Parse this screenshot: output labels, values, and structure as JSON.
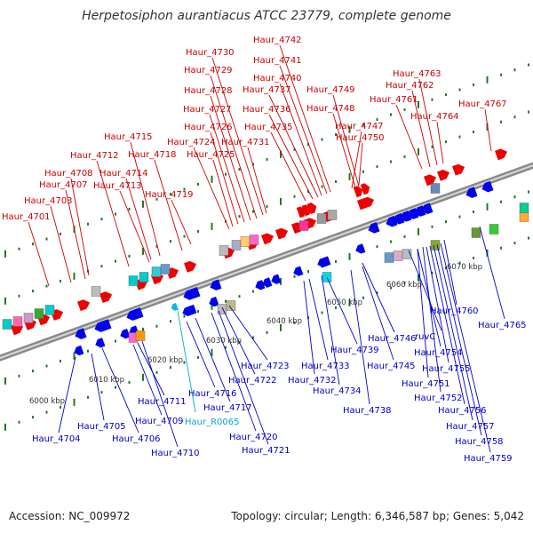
{
  "title": "Herpetosiphon aurantiacus ATCC 23779, complete genome",
  "footer": {
    "accession": "Accession: NC_009972",
    "topology": "Topology: circular; Length: 6,346,587 bp; Genes: 5,042"
  },
  "colors": {
    "forward_gene": "#ee0000",
    "reverse_gene": "#0000ee",
    "rna_gene": "#00bbdd",
    "forward_label": "#cc0000",
    "reverse_label": "#0000cc",
    "rna_label": "#00aacc",
    "tick": "#227722",
    "backbone": "#8a8a8a"
  },
  "kbp_ticks": [
    "6000 kbp",
    "6010 kbp",
    "6020 kbp",
    "6030 kbp",
    "6040 kbp",
    "6050 kbp",
    "6060 kbp",
    "6070 kbp"
  ],
  "forward_genes": [
    "Haur_4701",
    "Haur_4703",
    "Haur_4707",
    "Haur_4708",
    "Haur_4712",
    "Haur_4713",
    "Haur_4714",
    "Haur_4715",
    "Haur_4718",
    "Haur_4719",
    "Haur_4724",
    "Haur_4725",
    "Haur_4726",
    "Haur_4727",
    "Haur_4728",
    "Haur_4729",
    "Haur_4730",
    "Haur_4731",
    "Haur_4735",
    "Haur_4736",
    "Haur_4737",
    "Haur_4740",
    "Haur_4741",
    "Haur_4742",
    "Haur_4747",
    "Haur_4748",
    "Haur_4749",
    "Haur_4750",
    "Haur_4761",
    "Haur_4762",
    "Haur_4763",
    "Haur_4764",
    "Haur_4767"
  ],
  "reverse_genes": [
    "Haur_4704",
    "Haur_4705",
    "Haur_4706",
    "Haur_4709",
    "Haur_4710",
    "Haur_4711",
    "Haur_4716",
    "Haur_4717",
    "Haur_4720",
    "Haur_4721",
    "Haur_4722",
    "Haur_4723",
    "Haur_4732",
    "Haur_4733",
    "Haur_4734",
    "Haur_4738",
    "Haur_4739",
    "Haur_4745",
    "Haur_4746",
    "ruvC",
    "Haur_4751",
    "Haur_4752",
    "Haur_4754",
    "Haur_4755",
    "Haur_4756",
    "Haur_4757",
    "Haur_4758",
    "Haur_4759",
    "Haur_4760",
    "Haur_4765"
  ],
  "rna_genes": [
    "Haur_R0065"
  ]
}
